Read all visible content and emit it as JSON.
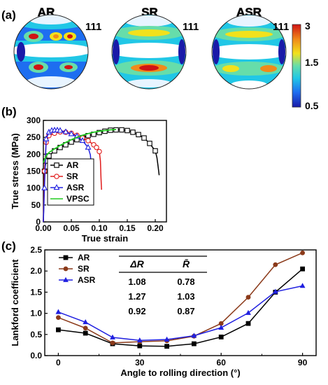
{
  "panels": {
    "a": {
      "label": "(a)"
    },
    "b": {
      "label": "(b)"
    },
    "c": {
      "label": "(c)"
    }
  },
  "pole_figures": {
    "plane": "111",
    "titles": [
      "AR",
      "SR",
      "ASR"
    ],
    "title_colors": [
      "#d8d800",
      "#e0201b",
      "#8ab420"
    ],
    "colorbar": {
      "max": "3",
      "mid": "1.5",
      "min": "0.5",
      "colors": [
        "#1a1aa8",
        "#1e6ef0",
        "#21c7e6",
        "#66ddaa",
        "#f2e11c",
        "#f08a1a",
        "#d01414"
      ]
    }
  },
  "chart_data": [
    {
      "type": "line",
      "xlabel": "True strain",
      "ylabel": "True stress (MPa)",
      "xlim": [
        0,
        0.22
      ],
      "ylim": [
        0,
        300
      ],
      "xticks": [
        "0.00",
        "0.05",
        "0.10",
        "0.15",
        "0.20"
      ],
      "yticks": [
        "0",
        "50",
        "100",
        "150",
        "200",
        "250",
        "300"
      ],
      "legend": "left-center",
      "series": [
        {
          "name": "AR",
          "color": "#000000",
          "marker": "square",
          "x": [
            0,
            0.002,
            0.005,
            0.01,
            0.02,
            0.03,
            0.04,
            0.05,
            0.06,
            0.07,
            0.08,
            0.09,
            0.1,
            0.11,
            0.12,
            0.13,
            0.14,
            0.15,
            0.16,
            0.17,
            0.18,
            0.19,
            0.2,
            0.203,
            0.205,
            0.207
          ],
          "y": [
            0,
            150,
            180,
            195,
            210,
            220,
            228,
            236,
            243,
            249,
            255,
            259,
            264,
            268,
            271,
            272,
            272,
            270,
            265,
            258,
            248,
            232,
            210,
            190,
            165,
            138
          ]
        },
        {
          "name": "SR",
          "color": "#e01b1b",
          "marker": "circle",
          "x": [
            0,
            0.002,
            0.005,
            0.01,
            0.02,
            0.03,
            0.04,
            0.05,
            0.06,
            0.07,
            0.08,
            0.09,
            0.095,
            0.1,
            0.102,
            0.103,
            0.104
          ],
          "y": [
            0,
            150,
            235,
            255,
            262,
            266,
            265,
            262,
            256,
            248,
            240,
            228,
            220,
            208,
            180,
            130,
            95
          ]
        },
        {
          "name": "ASR",
          "color": "#2020e0",
          "marker": "triangle",
          "x": [
            0,
            0.002,
            0.005,
            0.01,
            0.015,
            0.02,
            0.025,
            0.03,
            0.04,
            0.05,
            0.06,
            0.07,
            0.08,
            0.084,
            0.086,
            0.087
          ],
          "y": [
            0,
            100,
            245,
            265,
            270,
            271,
            271,
            270,
            266,
            260,
            253,
            240,
            220,
            198,
            160,
            113
          ]
        },
        {
          "name": "VPSC",
          "color": "#22cc22",
          "marker": "none",
          "x": [
            0,
            0.005,
            0.01,
            0.02,
            0.03,
            0.04,
            0.05,
            0.06,
            0.07,
            0.08,
            0.09,
            0.1,
            0.11,
            0.12,
            0.13
          ],
          "y": [
            175,
            195,
            205,
            216,
            226,
            235,
            243,
            250,
            256,
            261,
            265,
            268,
            270,
            272,
            273
          ]
        }
      ]
    },
    {
      "type": "line",
      "xlabel": "Angle to rolling direction (°)",
      "ylabel": "Lankford coefficient",
      "xlim": [
        -5,
        95
      ],
      "ylim": [
        0,
        2.5
      ],
      "xticks": [
        "0",
        "30",
        "60",
        "90"
      ],
      "yticks": [
        "0.0",
        "0.5",
        "1.0",
        "1.5",
        "2.0",
        "2.5"
      ],
      "legend": "top-left",
      "x": [
        0,
        10,
        20,
        30,
        40,
        50,
        60,
        70,
        80,
        90
      ],
      "series": [
        {
          "name": "AR",
          "color": "#000000",
          "marker": "square",
          "values": [
            0.61,
            0.53,
            0.28,
            0.23,
            0.22,
            0.28,
            0.44,
            0.76,
            1.5,
            2.05
          ]
        },
        {
          "name": "SR",
          "color": "#8b3a1a",
          "marker": "circle",
          "values": [
            0.9,
            0.65,
            0.3,
            0.33,
            0.35,
            0.46,
            0.76,
            1.38,
            2.15,
            2.43
          ]
        },
        {
          "name": "ASR",
          "color": "#2020e0",
          "marker": "triangle",
          "values": [
            1.03,
            0.79,
            0.43,
            0.36,
            0.38,
            0.47,
            0.66,
            1.01,
            1.51,
            1.65
          ]
        }
      ],
      "table": {
        "headers": [
          "ΔR",
          "R̄"
        ],
        "rows": [
          {
            "values": [
              "1.08",
              "0.78"
            ],
            "color": "#000000"
          },
          {
            "values": [
              "1.27",
              "1.03"
            ],
            "color": "#8b3a1a"
          },
          {
            "values": [
              "0.92",
              "0.87"
            ],
            "color": "#2020e0"
          }
        ]
      }
    }
  ]
}
